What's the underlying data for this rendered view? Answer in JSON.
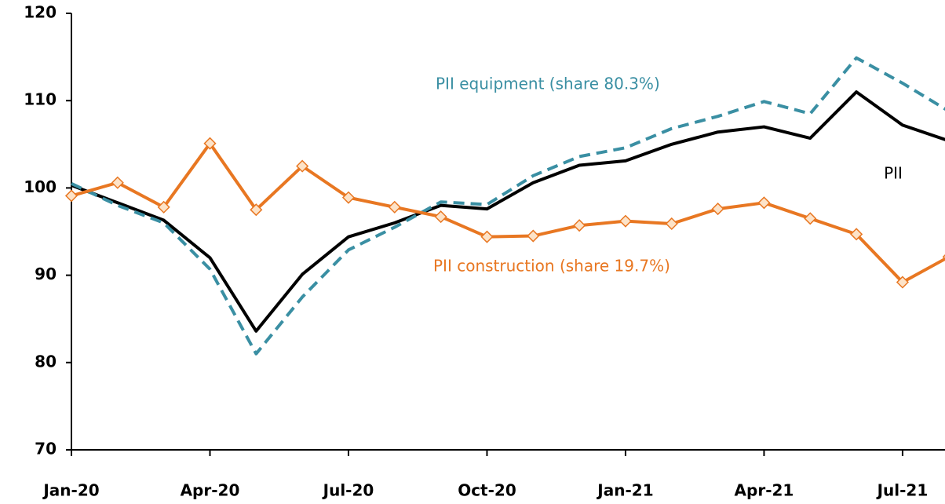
{
  "chart_data": {
    "type": "line",
    "categories": [
      "Jan-20",
      null,
      null,
      "Apr-20",
      null,
      null,
      "Jul-20",
      null,
      null,
      "Oct-20",
      null,
      null,
      "Jan-21",
      null,
      null,
      "Apr-21",
      null,
      null,
      "Jul-21",
      null
    ],
    "series": [
      {
        "name": "PII",
        "color": "#000000",
        "dash": false,
        "markers": false,
        "values": [
          100.3,
          98.3,
          96.3,
          92.0,
          83.6,
          90.1,
          94.4,
          96.0,
          98.0,
          97.6,
          100.6,
          102.6,
          103.1,
          105.0,
          106.4,
          107.0,
          105.7,
          111.0,
          107.2,
          105.4
        ]
      },
      {
        "name": "PII equipment (share 80.3%)",
        "color": "#3a8fa3",
        "dash": true,
        "markers": false,
        "values": [
          100.5,
          98.0,
          96.0,
          90.7,
          81.0,
          87.5,
          92.9,
          95.5,
          98.4,
          98.1,
          101.4,
          103.6,
          104.6,
          106.8,
          108.2,
          109.9,
          108.5,
          114.9,
          112.0,
          108.8
        ]
      },
      {
        "name": "PII construction (share 19.7%)",
        "color": "#e87722",
        "dash": false,
        "markers": true,
        "values": [
          99.1,
          100.6,
          97.8,
          105.1,
          97.5,
          102.5,
          98.9,
          97.8,
          96.7,
          94.4,
          94.5,
          95.7,
          96.2,
          95.9,
          97.6,
          98.3,
          96.5,
          94.7,
          89.2,
          92.1
        ]
      }
    ],
    "ylim": [
      70,
      120
    ],
    "yticks": [
      70,
      80,
      90,
      100,
      110,
      120
    ],
    "grid": false
  }
}
